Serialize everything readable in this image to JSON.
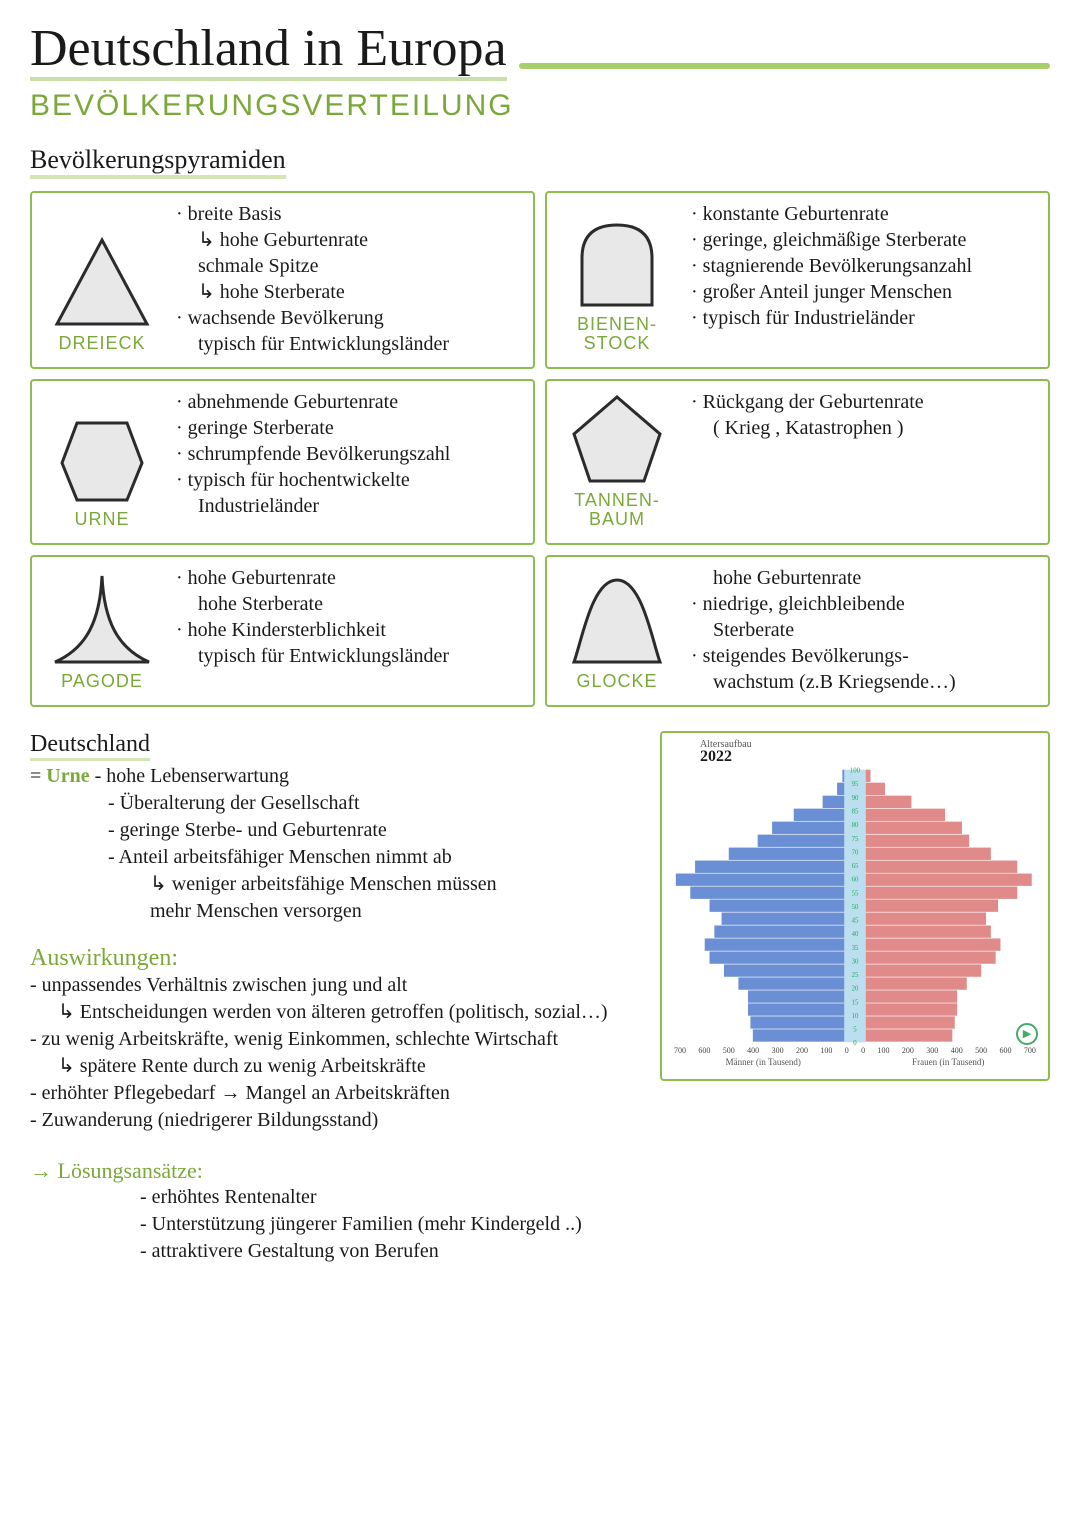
{
  "colors": {
    "accent_green": "#7aa93a",
    "border_green": "#8fbc4f",
    "highlight_green": "#d3e6b3",
    "shape_fill": "#e8e8e8",
    "shape_stroke": "#2b2b2b",
    "text": "#1a1a1a",
    "male_blue": "#6a8fd4",
    "female_red": "#e08a8a"
  },
  "title": "Deutschland in Europa",
  "subtitle": "BEVÖLKERUNGSVERTEILUNG",
  "section_pyramids": "Bevölkerungspyramiden",
  "cards": {
    "dreieck": {
      "label": "DREIECK",
      "lines": [
        {
          "t": "· breite Basis",
          "cls": ""
        },
        {
          "t": "hohe Geburtenrate",
          "cls": "indent hook"
        },
        {
          "t": "schmale Spitze",
          "cls": "indent"
        },
        {
          "t": "hohe Sterberate",
          "cls": "indent hook"
        },
        {
          "t": "· wachsende Bevölkerung",
          "cls": ""
        },
        {
          "t": "typisch für Entwicklungsländer",
          "cls": "indent"
        }
      ]
    },
    "bienenstock": {
      "label": "BIENEN-\nSTOCK",
      "lines": [
        {
          "t": "· konstante Geburtenrate",
          "cls": ""
        },
        {
          "t": "· geringe, gleichmäßige Sterberate",
          "cls": ""
        },
        {
          "t": "· stagnierende Bevölkerungsanzahl",
          "cls": ""
        },
        {
          "t": "· großer Anteil junger Menschen",
          "cls": ""
        },
        {
          "t": "· typisch für Industrieländer",
          "cls": ""
        }
      ]
    },
    "urne": {
      "label": "URNE",
      "lines": [
        {
          "t": "· abnehmende Geburtenrate",
          "cls": ""
        },
        {
          "t": "· geringe Sterberate",
          "cls": ""
        },
        {
          "t": "· schrumpfende Bevölkerungszahl",
          "cls": ""
        },
        {
          "t": "· typisch für hochentwickelte",
          "cls": ""
        },
        {
          "t": "Industrieländer",
          "cls": "indent"
        }
      ]
    },
    "tannenbaum": {
      "label": "TANNEN-\nBAUM",
      "lines": [
        {
          "t": "· Rückgang der Geburtenrate",
          "cls": ""
        },
        {
          "t": "( Krieg , Katastrophen )",
          "cls": "indent"
        }
      ]
    },
    "pagode": {
      "label": "PAGODE",
      "lines": [
        {
          "t": "· hohe Geburtenrate",
          "cls": ""
        },
        {
          "t": "hohe Sterberate",
          "cls": "indent"
        },
        {
          "t": "· hohe Kindersterblichkeit",
          "cls": ""
        },
        {
          "t": "typisch für Entwicklungsländer",
          "cls": "indent"
        }
      ]
    },
    "glocke": {
      "label": "GLOCKE",
      "lines": [
        {
          "t": "hohe Geburtenrate",
          "cls": "indent"
        },
        {
          "t": "· niedrige, gleichbleibende",
          "cls": ""
        },
        {
          "t": "Sterberate",
          "cls": "indent"
        },
        {
          "t": "· steigendes Bevölkerungs-",
          "cls": ""
        },
        {
          "t": "wachstum (z.B Kriegsende…)",
          "cls": "indent"
        }
      ]
    }
  },
  "deutschland": {
    "heading": "Deutschland",
    "eq_prefix": "= ",
    "eq_word": "Urne",
    "eq_rest": " - hohe Lebenserwartung",
    "rows": [
      "- Überalterung der Gesellschaft",
      "- geringe Sterbe- und Geburtenrate",
      "- Anteil arbeitsfähiger Menschen nimmt ab"
    ],
    "subrow": "↳ weniger arbeitsfähige Menschen müssen\n   mehr Menschen versorgen"
  },
  "auswirkungen": {
    "heading": "Auswirkungen:",
    "lines": [
      {
        "t": "- unpassendes Verhältnis zwischen jung und alt",
        "cls": "l1"
      },
      {
        "t": "↳ Entscheidungen werden von älteren getroffen (politisch, sozial…)",
        "cls": "l2"
      },
      {
        "t": "- zu wenig Arbeitskräfte, wenig Einkommen, schlechte Wirtschaft",
        "cls": "l1"
      },
      {
        "t": "↳ spätere Rente durch zu wenig Arbeitskräfte",
        "cls": "l2"
      },
      {
        "t": "- erhöhter Pflegebedarf → Mangel an Arbeitskräften",
        "cls": "l1"
      },
      {
        "t": "- Zuwanderung (niedrigerer Bildungsstand)",
        "cls": "l1"
      }
    ]
  },
  "loesungen": {
    "heading": "→ Lösungsansätze:",
    "lines": [
      "- erhöhtes Rentenalter",
      "- Unterstützung jüngerer Familien (mehr Kindergeld ..)",
      "- attraktivere Gestaltung von Berufen"
    ]
  },
  "pyramid_chart": {
    "type": "population_pyramid",
    "title_small": "Altersaufbau",
    "year": "2022",
    "x_axis_ticks_left": [
      700,
      600,
      500,
      400,
      300,
      200,
      100,
      0
    ],
    "x_axis_ticks_right": [
      0,
      100,
      200,
      300,
      400,
      500,
      600,
      700
    ],
    "x_axis_label_left": "Männer (in Tausend)",
    "x_axis_label_right": "Frauen (in Tausend)",
    "y_max": 100,
    "y_tick_step": 5,
    "male_color": "#6a8fd4",
    "female_color": "#e08a8a",
    "center_strip_color": "#bcdff0",
    "background_color": "#ffffff",
    "ages": [
      0,
      5,
      10,
      15,
      20,
      25,
      30,
      35,
      40,
      45,
      50,
      55,
      60,
      65,
      70,
      75,
      80,
      85,
      90,
      95,
      100
    ],
    "male_values": [
      380,
      390,
      400,
      400,
      440,
      500,
      560,
      580,
      540,
      510,
      560,
      640,
      700,
      620,
      480,
      360,
      300,
      210,
      90,
      30,
      8
    ],
    "female_values": [
      360,
      370,
      380,
      380,
      420,
      480,
      540,
      560,
      520,
      500,
      550,
      630,
      690,
      630,
      520,
      430,
      400,
      330,
      190,
      80,
      20
    ]
  }
}
